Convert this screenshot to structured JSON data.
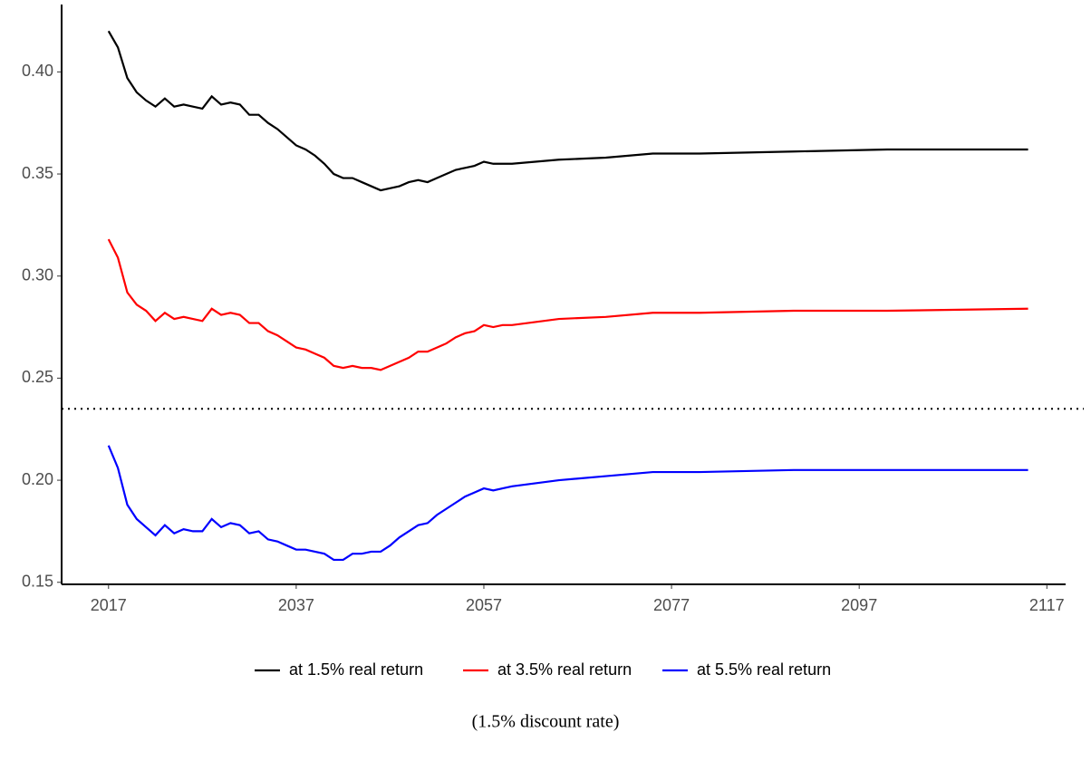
{
  "chart_data": {
    "type": "line",
    "caption": "(1.5% discount rate)",
    "x": [
      2017,
      2018,
      2019,
      2020,
      2021,
      2022,
      2023,
      2024,
      2025,
      2026,
      2027,
      2028,
      2029,
      2030,
      2031,
      2032,
      2033,
      2034,
      2035,
      2036,
      2037,
      2038,
      2039,
      2040,
      2041,
      2042,
      2043,
      2044,
      2045,
      2046,
      2047,
      2048,
      2049,
      2050,
      2051,
      2052,
      2053,
      2054,
      2055,
      2056,
      2057,
      2058,
      2059,
      2060,
      2065,
      2070,
      2075,
      2080,
      2090,
      2100,
      2115
    ],
    "series": [
      {
        "name": "at 1.5% real return",
        "color": "#000000",
        "values": [
          0.42,
          0.412,
          0.397,
          0.39,
          0.386,
          0.383,
          0.387,
          0.383,
          0.384,
          0.383,
          0.382,
          0.388,
          0.384,
          0.385,
          0.384,
          0.379,
          0.379,
          0.375,
          0.372,
          0.368,
          0.364,
          0.362,
          0.359,
          0.355,
          0.35,
          0.348,
          0.348,
          0.346,
          0.344,
          0.342,
          0.343,
          0.344,
          0.346,
          0.347,
          0.346,
          0.348,
          0.35,
          0.352,
          0.353,
          0.354,
          0.356,
          0.355,
          0.355,
          0.355,
          0.357,
          0.358,
          0.36,
          0.36,
          0.361,
          0.362,
          0.362
        ]
      },
      {
        "name": "at 3.5% real return",
        "color": "#ff0000",
        "values": [
          0.318,
          0.309,
          0.292,
          0.286,
          0.283,
          0.278,
          0.282,
          0.279,
          0.28,
          0.279,
          0.278,
          0.284,
          0.281,
          0.282,
          0.281,
          0.277,
          0.277,
          0.273,
          0.271,
          0.268,
          0.265,
          0.264,
          0.262,
          0.26,
          0.256,
          0.255,
          0.256,
          0.255,
          0.255,
          0.254,
          0.256,
          0.258,
          0.26,
          0.263,
          0.263,
          0.265,
          0.267,
          0.27,
          0.272,
          0.273,
          0.276,
          0.275,
          0.276,
          0.276,
          0.279,
          0.28,
          0.282,
          0.282,
          0.283,
          0.283,
          0.284
        ]
      },
      {
        "name": "at 5.5% real return",
        "color": "#0000ff",
        "values": [
          0.217,
          0.206,
          0.188,
          0.181,
          0.177,
          0.173,
          0.178,
          0.174,
          0.176,
          0.175,
          0.175,
          0.181,
          0.177,
          0.179,
          0.178,
          0.174,
          0.175,
          0.171,
          0.17,
          0.168,
          0.166,
          0.166,
          0.165,
          0.164,
          0.161,
          0.161,
          0.164,
          0.164,
          0.165,
          0.165,
          0.168,
          0.172,
          0.175,
          0.178,
          0.179,
          0.183,
          0.186,
          0.189,
          0.192,
          0.194,
          0.196,
          0.195,
          0.196,
          0.197,
          0.2,
          0.202,
          0.204,
          0.204,
          0.205,
          0.205,
          0.205
        ]
      }
    ],
    "hline": 0.235,
    "xlim": [
      2012,
      2119
    ],
    "xticks": [
      2017,
      2037,
      2057,
      2077,
      2097,
      2117
    ],
    "ylim": [
      0.149,
      0.433
    ],
    "yticks": [
      {
        "value": 0.15,
        "label": "0.15"
      },
      {
        "value": 0.2,
        "label": "0.20"
      },
      0.25,
      {
        "value": 0.3,
        "label": "0.30"
      },
      0.35,
      {
        "value": 0.4,
        "label": "0.40"
      }
    ],
    "legend": "bottom",
    "grid": false
  }
}
